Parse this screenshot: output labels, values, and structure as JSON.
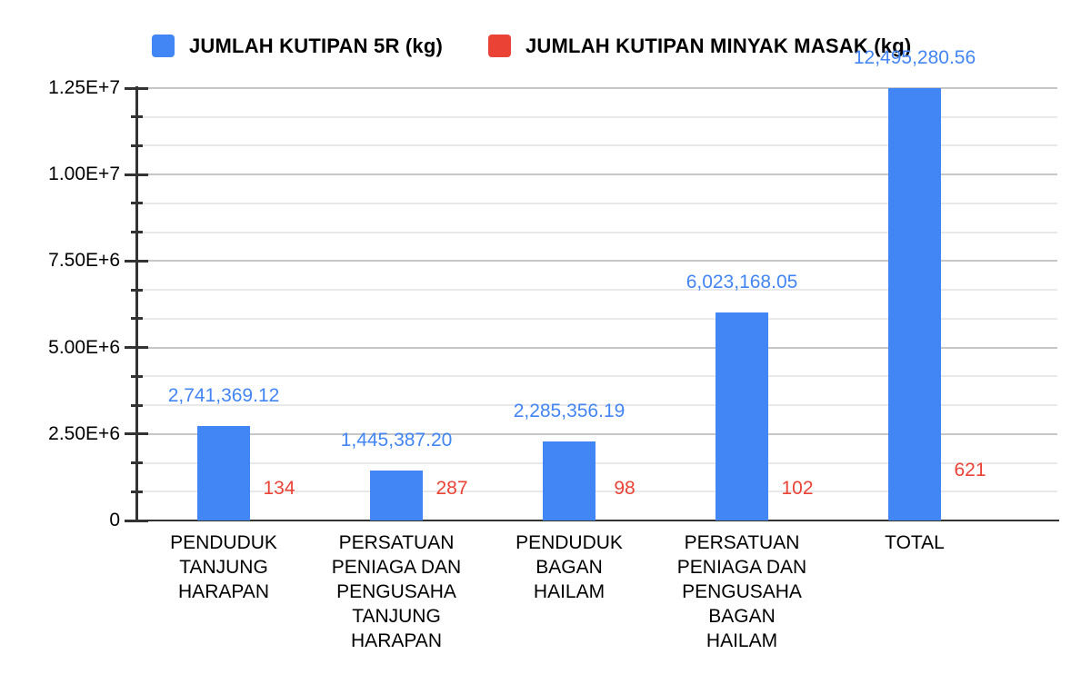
{
  "chart_data": {
    "type": "bar",
    "title": "",
    "xlabel": "",
    "ylabel": "",
    "legend_position": "top",
    "grid": true,
    "ylim": [
      0,
      12500000
    ],
    "y_tick_format": "scientific",
    "y_ticks": [
      {
        "value": 0,
        "label": "0"
      },
      {
        "value": 2500000,
        "label": "2.50E+6"
      },
      {
        "value": 5000000,
        "label": "5.00E+6"
      },
      {
        "value": 7500000,
        "label": "7.50E+6"
      },
      {
        "value": 10000000,
        "label": "1.00E+7"
      },
      {
        "value": 12500000,
        "label": "1.25E+7"
      }
    ],
    "minor_ticks_per_major": 3,
    "categories": [
      "PENDUDUK TANJUNG HARAPAN",
      "PERSATUAN PENIAGA DAN PENGUSAHA TANJUNG HARAPAN",
      "PENDUDUK BAGAN HAILAM",
      "PERSATUAN PENIAGA DAN PENGUSAHA BAGAN HAILAM",
      "TOTAL"
    ],
    "category_lines": [
      [
        "PENDUDUK",
        "TANJUNG",
        "HARAPAN"
      ],
      [
        "PERSATUAN",
        "PENIAGA DAN",
        "PENGUSAHA",
        "TANJUNG",
        "HARAPAN"
      ],
      [
        "PENDUDUK",
        "BAGAN",
        "HAILAM"
      ],
      [
        "PERSATUAN",
        "PENIAGA DAN",
        "PENGUSAHA",
        "BAGAN",
        "HAILAM"
      ],
      [
        "TOTAL"
      ]
    ],
    "series": [
      {
        "name": "JUMLAH KUTIPAN 5R (kg)",
        "color": "#4285F4",
        "values": [
          2741369.12,
          1445387.2,
          2285356.19,
          6023168.05,
          12495280.56
        ],
        "labels": [
          "2,741,369.12",
          "1,445,387.20",
          "2,285,356.19",
          "6,023,168.05",
          "12,495,280.56"
        ]
      },
      {
        "name": "JUMLAH KUTIPAN MINYAK MASAK (kg)",
        "color": "#EA4335",
        "values": [
          134,
          287,
          98,
          102,
          621
        ],
        "labels": [
          "134",
          "287",
          "98",
          "102",
          "621"
        ]
      }
    ]
  },
  "colors": {
    "background": "#ffffff",
    "axis": "#333333",
    "gridline_major": "#c7c7c7",
    "gridline_minor": "#e9e9e9",
    "axis_text": "#000000"
  }
}
